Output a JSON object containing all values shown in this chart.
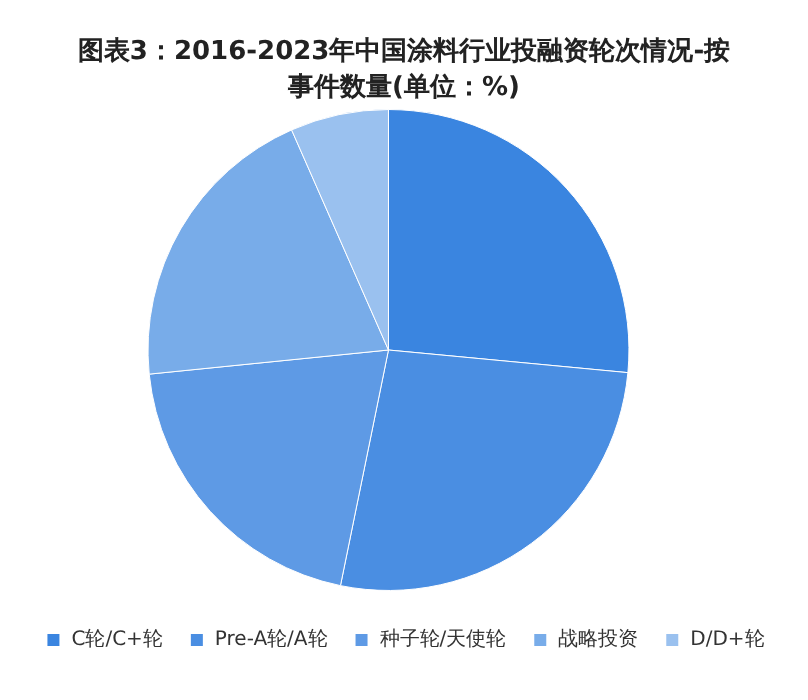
{
  "chart_data": {
    "type": "pie",
    "title": "图表3：2016-2023年中国涂料行业投融资轮次情况-按事件数量(单位：%)",
    "categories": [
      "C轮/C+轮",
      "Pre-A轮/A轮",
      "种子轮/天使轮",
      "战略投资",
      "D/D+轮"
    ],
    "values": [
      26.5,
      26.7,
      20.2,
      20.0,
      6.6
    ],
    "colors": [
      "#3a85e0",
      "#4a8ee2",
      "#5e9ae5",
      "#78ace9",
      "#9ac1ef"
    ],
    "legend": "bottom"
  }
}
